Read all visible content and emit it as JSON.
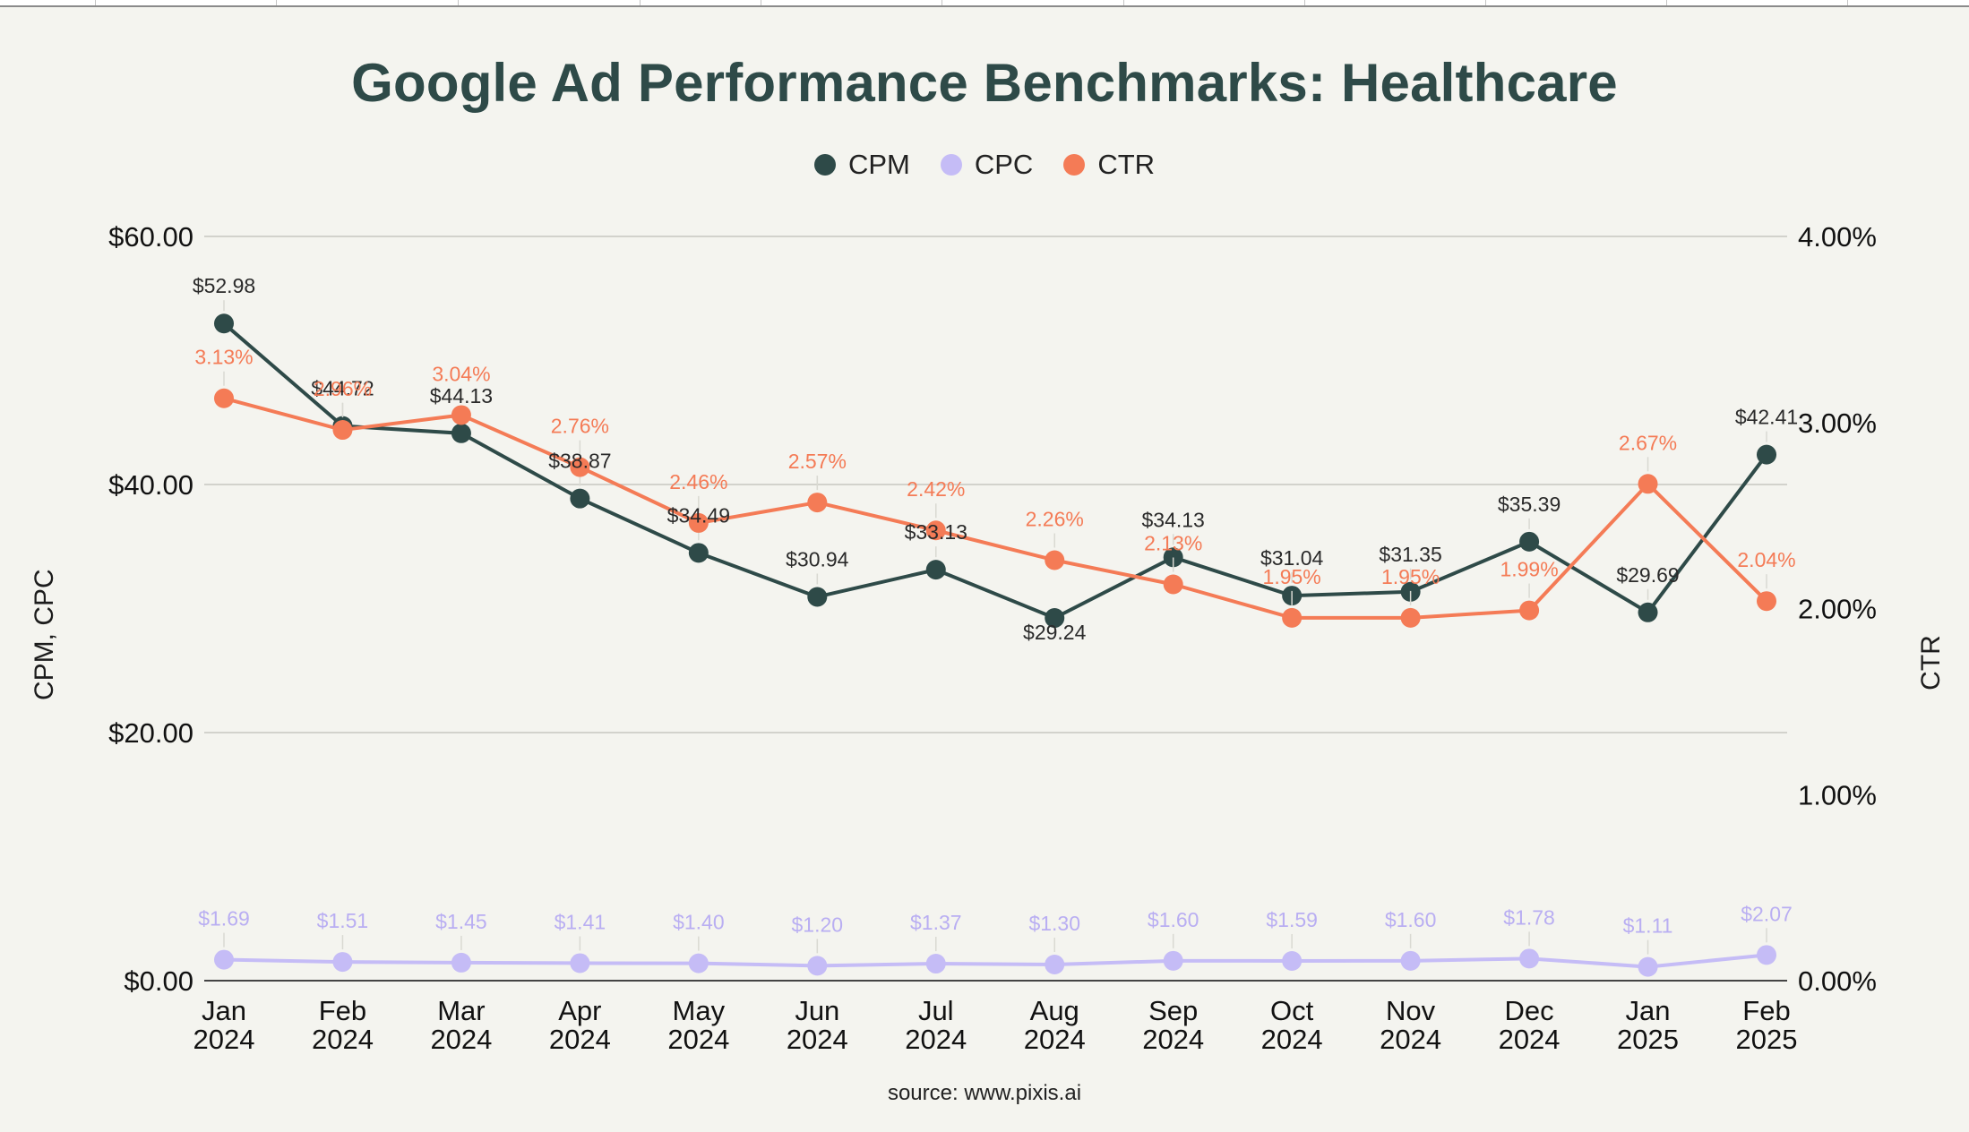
{
  "title": "Google Ad Performance Benchmarks: Healthcare",
  "source": "source: www.pixis.ai",
  "legend": [
    {
      "label": "CPM",
      "color": "#2e4a48"
    },
    {
      "label": "CPC",
      "color": "#c5bcf6"
    },
    {
      "label": "CTR",
      "color": "#f47b56"
    }
  ],
  "left_axis_title": "CPM, CPC",
  "right_axis_title": "CTR",
  "chart_data": {
    "type": "line",
    "title": "Google Ad Performance Benchmarks: Healthcare",
    "categories": [
      [
        "Jan",
        "2024"
      ],
      [
        "Feb",
        "2024"
      ],
      [
        "Mar",
        "2024"
      ],
      [
        "Apr",
        "2024"
      ],
      [
        "May",
        "2024"
      ],
      [
        "Jun",
        "2024"
      ],
      [
        "Jul",
        "2024"
      ],
      [
        "Aug",
        "2024"
      ],
      [
        "Sep",
        "2024"
      ],
      [
        "Oct",
        "2024"
      ],
      [
        "Nov",
        "2024"
      ],
      [
        "Dec",
        "2024"
      ],
      [
        "Jan",
        "2025"
      ],
      [
        "Feb",
        "2025"
      ]
    ],
    "left_axis": {
      "label": "CPM, CPC",
      "ylim": [
        0,
        60
      ],
      "ticks": [
        0,
        20,
        40,
        60
      ],
      "tick_labels": [
        "$0.00",
        "$20.00",
        "$40.00",
        "$60.00"
      ]
    },
    "right_axis": {
      "label": "CTR",
      "ylim": [
        0,
        4
      ],
      "ticks": [
        0,
        1,
        2,
        3,
        4
      ],
      "tick_labels": [
        "0.00%",
        "1.00%",
        "2.00%",
        "3.00%",
        "4.00%"
      ]
    },
    "grid": true,
    "legend_position": "top",
    "series": [
      {
        "name": "CPM",
        "axis": "left",
        "color": "#2e4a48",
        "values": [
          52.98,
          44.72,
          44.13,
          38.87,
          34.49,
          30.94,
          33.13,
          29.24,
          34.13,
          31.04,
          31.35,
          35.39,
          29.69,
          42.41
        ],
        "labels": [
          "$52.98",
          "$44.72",
          "$44.13",
          "$38.87",
          "$34.49",
          "$30.94",
          "$33.13",
          "$29.24",
          "$34.13",
          "$31.04",
          "$31.35",
          "$35.39",
          "$29.69",
          "$42.41"
        ]
      },
      {
        "name": "CPC",
        "axis": "left",
        "color": "#c5bcf6",
        "values": [
          1.69,
          1.51,
          1.45,
          1.41,
          1.4,
          1.2,
          1.37,
          1.3,
          1.6,
          1.59,
          1.6,
          1.78,
          1.11,
          2.07
        ],
        "labels": [
          "$1.69",
          "$1.51",
          "$1.45",
          "$1.41",
          "$1.40",
          "$1.20",
          "$1.37",
          "$1.30",
          "$1.60",
          "$1.59",
          "$1.60",
          "$1.78",
          "$1.11",
          "$2.07"
        ]
      },
      {
        "name": "CTR",
        "axis": "right",
        "color": "#f47b56",
        "values": [
          3.13,
          2.96,
          3.04,
          2.76,
          2.46,
          2.57,
          2.42,
          2.26,
          2.13,
          1.95,
          1.95,
          1.99,
          2.67,
          2.04
        ],
        "labels": [
          "3.13%",
          "2.96%",
          "3.04%",
          "2.76%",
          "2.46%",
          "2.57%",
          "2.42%",
          "2.26%",
          "2.13%",
          "1.95%",
          "1.95%",
          "1.99%",
          "2.67%",
          "2.04%"
        ]
      }
    ]
  }
}
